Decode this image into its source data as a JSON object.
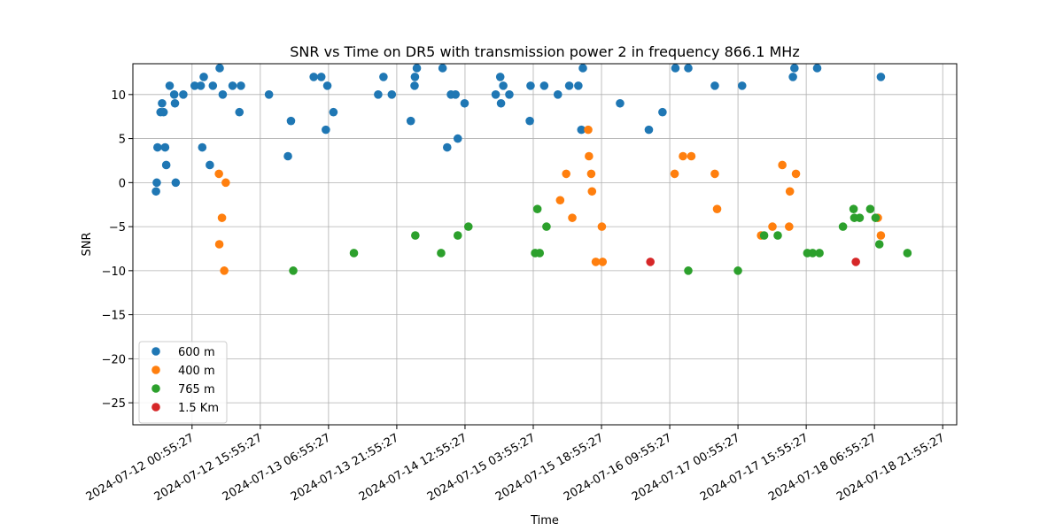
{
  "chart_data": {
    "type": "scatter",
    "title": "SNR vs Time on DR5 with transmission power 2 in frequency 866.1 MHz",
    "xlabel": "Time",
    "ylabel": "SNR",
    "x_scale": "time",
    "xlim": [
      "2024-07-11 11:55:00",
      "2024-07-19 01:00:00"
    ],
    "ylim": [
      -27.5,
      13.5
    ],
    "grid": true,
    "legend_position": "lower-left",
    "x_ticks": [
      "2024-07-12 00:55:27",
      "2024-07-12 15:55:27",
      "2024-07-13 06:55:27",
      "2024-07-13 21:55:27",
      "2024-07-14 12:55:27",
      "2024-07-15 03:55:27",
      "2024-07-15 18:55:27",
      "2024-07-16 09:55:27",
      "2024-07-17 00:55:27",
      "2024-07-17 15:55:27",
      "2024-07-18 06:55:27",
      "2024-07-18 21:55:27"
    ],
    "y_ticks": [
      -25,
      -20,
      -15,
      -10,
      -5,
      0,
      5,
      10
    ],
    "series": [
      {
        "name": "600 m",
        "color": "#1f77b4",
        "points": [
          [
            "2024-07-11 17:00",
            -1
          ],
          [
            "2024-07-11 17:10",
            0
          ],
          [
            "2024-07-11 17:20",
            4
          ],
          [
            "2024-07-11 18:00",
            8
          ],
          [
            "2024-07-11 18:20",
            9
          ],
          [
            "2024-07-11 18:40",
            8
          ],
          [
            "2024-07-11 19:00",
            4
          ],
          [
            "2024-07-11 19:15",
            2
          ],
          [
            "2024-07-11 20:00",
            11
          ],
          [
            "2024-07-11 21:00",
            10
          ],
          [
            "2024-07-11 21:10",
            9
          ],
          [
            "2024-07-11 21:20",
            0
          ],
          [
            "2024-07-11 23:00",
            10
          ],
          [
            "2024-07-12 01:30",
            11
          ],
          [
            "2024-07-12 02:50",
            11
          ],
          [
            "2024-07-12 03:10",
            4
          ],
          [
            "2024-07-12 03:30",
            12
          ],
          [
            "2024-07-12 04:50",
            2
          ],
          [
            "2024-07-12 05:30",
            11
          ],
          [
            "2024-07-12 07:00",
            13
          ],
          [
            "2024-07-12 07:40",
            10
          ],
          [
            "2024-07-12 09:50",
            11
          ],
          [
            "2024-07-12 11:20",
            8
          ],
          [
            "2024-07-12 11:40",
            11
          ],
          [
            "2024-07-12 17:50",
            10
          ],
          [
            "2024-07-12 22:00",
            3
          ],
          [
            "2024-07-12 22:40",
            7
          ],
          [
            "2024-07-13 03:40",
            12
          ],
          [
            "2024-07-13 05:20",
            12
          ],
          [
            "2024-07-13 06:20",
            6
          ],
          [
            "2024-07-13 06:40",
            11
          ],
          [
            "2024-07-13 08:00",
            8
          ],
          [
            "2024-07-13 17:50",
            10
          ],
          [
            "2024-07-13 19:00",
            12
          ],
          [
            "2024-07-13 20:50",
            10
          ],
          [
            "2024-07-14 01:00",
            7
          ],
          [
            "2024-07-14 01:50",
            11
          ],
          [
            "2024-07-14 01:55",
            12
          ],
          [
            "2024-07-14 02:20",
            13
          ],
          [
            "2024-07-14 08:00",
            13
          ],
          [
            "2024-07-14 09:00",
            4
          ],
          [
            "2024-07-14 09:50",
            10
          ],
          [
            "2024-07-14 10:50",
            10
          ],
          [
            "2024-07-14 11:20",
            5
          ],
          [
            "2024-07-14 12:50",
            9
          ],
          [
            "2024-07-14 19:40",
            10
          ],
          [
            "2024-07-14 20:40",
            12
          ],
          [
            "2024-07-14 20:50",
            9
          ],
          [
            "2024-07-14 21:20",
            11
          ],
          [
            "2024-07-14 22:40",
            10
          ],
          [
            "2024-07-15 03:10",
            7
          ],
          [
            "2024-07-15 03:20",
            11
          ],
          [
            "2024-07-15 06:20",
            11
          ],
          [
            "2024-07-15 09:20",
            10
          ],
          [
            "2024-07-15 11:50",
            11
          ],
          [
            "2024-07-15 13:50",
            11
          ],
          [
            "2024-07-15 14:30",
            6
          ],
          [
            "2024-07-15 14:50",
            13
          ],
          [
            "2024-07-15 23:00",
            9
          ],
          [
            "2024-07-16 05:20",
            6
          ],
          [
            "2024-07-16 08:20",
            8
          ],
          [
            "2024-07-16 11:10",
            13
          ],
          [
            "2024-07-16 14:00",
            13
          ],
          [
            "2024-07-16 19:50",
            11
          ],
          [
            "2024-07-17 01:50",
            11
          ],
          [
            "2024-07-17 13:00",
            12
          ],
          [
            "2024-07-17 13:20",
            13
          ],
          [
            "2024-07-17 18:20",
            13
          ],
          [
            "2024-07-18 08:20",
            12
          ]
        ]
      },
      {
        "name": "400 m",
        "color": "#ff7f0e",
        "points": [
          [
            "2024-07-12 06:50",
            1
          ],
          [
            "2024-07-12 06:55",
            -7
          ],
          [
            "2024-07-12 07:30",
            -4
          ],
          [
            "2024-07-12 08:00",
            -10
          ],
          [
            "2024-07-12 08:20",
            0
          ],
          [
            "2024-07-15 09:50",
            -2
          ],
          [
            "2024-07-15 11:10",
            1
          ],
          [
            "2024-07-15 12:30",
            -4
          ],
          [
            "2024-07-15 16:00",
            6
          ],
          [
            "2024-07-15 16:10",
            3
          ],
          [
            "2024-07-15 16:40",
            1
          ],
          [
            "2024-07-15 16:50",
            -1
          ],
          [
            "2024-07-15 17:40",
            -9
          ],
          [
            "2024-07-15 19:10",
            -9
          ],
          [
            "2024-07-15 19:00",
            -5
          ],
          [
            "2024-07-16 11:00",
            1
          ],
          [
            "2024-07-16 12:50",
            3
          ],
          [
            "2024-07-16 14:40",
            3
          ],
          [
            "2024-07-16 19:50",
            1
          ],
          [
            "2024-07-16 20:20",
            -3
          ],
          [
            "2024-07-17 06:00",
            -6
          ],
          [
            "2024-07-17 08:30",
            -5
          ],
          [
            "2024-07-17 10:40",
            2
          ],
          [
            "2024-07-17 12:10",
            -5
          ],
          [
            "2024-07-17 12:20",
            -1
          ],
          [
            "2024-07-17 13:40",
            1
          ],
          [
            "2024-07-18 07:40",
            -4
          ],
          [
            "2024-07-18 08:20",
            -6
          ]
        ]
      },
      {
        "name": "765 m",
        "color": "#2ca02c",
        "points": [
          [
            "2024-07-12 23:10",
            -10
          ],
          [
            "2024-07-13 12:30",
            -8
          ],
          [
            "2024-07-14 02:00",
            -6
          ],
          [
            "2024-07-14 07:40",
            -8
          ],
          [
            "2024-07-14 11:20",
            -6
          ],
          [
            "2024-07-14 13:40",
            -5
          ],
          [
            "2024-07-15 04:20",
            -8
          ],
          [
            "2024-07-15 04:50",
            -3
          ],
          [
            "2024-07-15 05:20",
            -8
          ],
          [
            "2024-07-15 06:50",
            -5
          ],
          [
            "2024-07-16 14:00",
            -10
          ],
          [
            "2024-07-17 00:55",
            -10
          ],
          [
            "2024-07-17 06:40",
            -6
          ],
          [
            "2024-07-17 09:40",
            -6
          ],
          [
            "2024-07-17 16:10",
            -8
          ],
          [
            "2024-07-17 17:20",
            -8
          ],
          [
            "2024-07-17 18:50",
            -8
          ],
          [
            "2024-07-18 00:00",
            -5
          ],
          [
            "2024-07-18 02:20",
            -3
          ],
          [
            "2024-07-18 02:30",
            -4
          ],
          [
            "2024-07-18 03:40",
            -4
          ],
          [
            "2024-07-18 06:00",
            -3
          ],
          [
            "2024-07-18 07:10",
            -4
          ],
          [
            "2024-07-18 08:00",
            -7
          ],
          [
            "2024-07-18 14:10",
            -8
          ]
        ]
      },
      {
        "name": "1.5 Km",
        "color": "#d62728",
        "points": [
          [
            "2024-07-16 05:40",
            -9
          ],
          [
            "2024-07-18 02:50",
            -9
          ]
        ]
      }
    ]
  }
}
